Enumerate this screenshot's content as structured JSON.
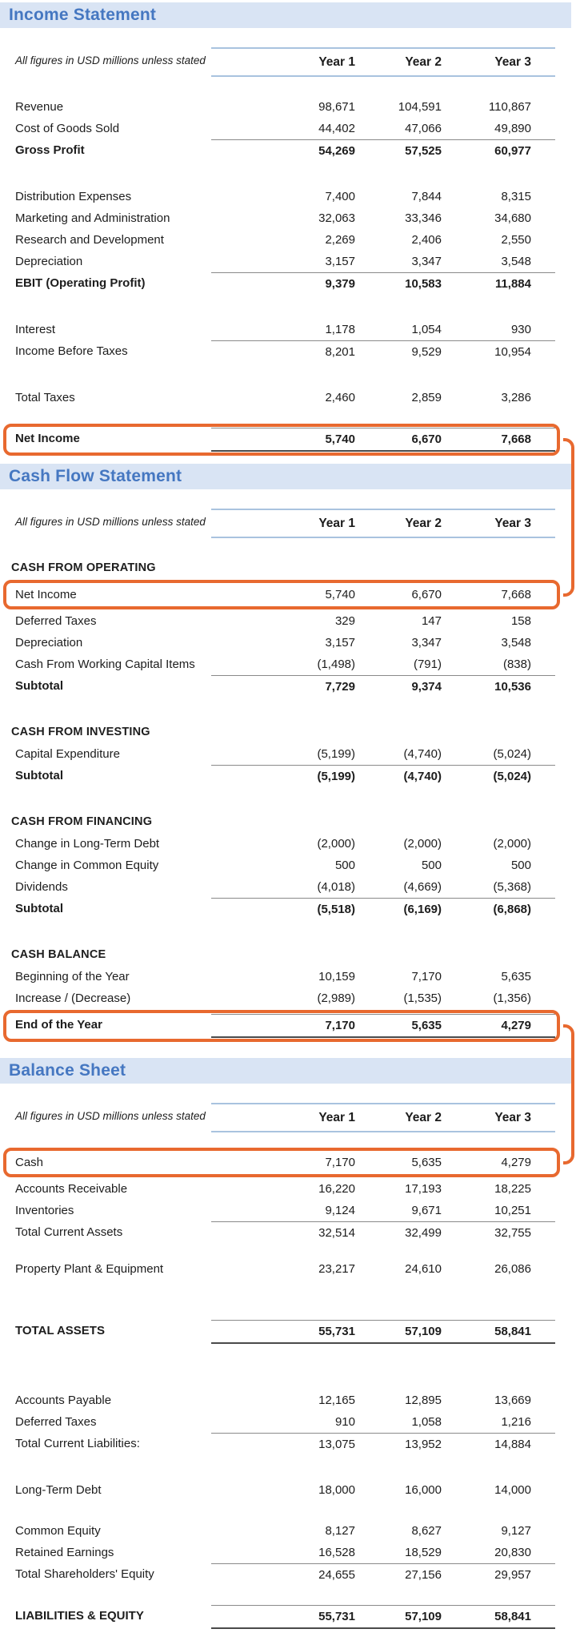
{
  "colors": {
    "section_title_blue": "#4577c1",
    "section_bar_bg": "#d9e4f4",
    "header_rule_blue": "#a9c3df",
    "highlight_orange": "#e8692f",
    "thin_rule_gray": "#8a8a8a",
    "total_rule_dark": "#4a4a4a"
  },
  "connectors": [
    {
      "from": "is-net-income",
      "to": "cf-net-income"
    },
    {
      "from": "cf-end-of-year",
      "to": "bs-cash"
    }
  ],
  "sections": [
    {
      "id": "income-statement",
      "title": "Income Statement",
      "note": "All figures in USD millions unless stated",
      "columns": [
        "Year 1",
        "Year 2",
        "Year 3"
      ],
      "groups": [
        {
          "rows": [
            {
              "label": "Revenue",
              "values": [
                "98,671",
                "104,591",
                "110,867"
              ]
            },
            {
              "label": "Cost of Goods Sold",
              "values": [
                "44,402",
                "47,066",
                "49,890"
              ]
            },
            {
              "label": "Gross Profit",
              "values": [
                "54,269",
                "57,525",
                "60,977"
              ],
              "bold": true,
              "rule_top": true
            }
          ]
        },
        {
          "rows": [
            {
              "label": "Distribution Expenses",
              "values": [
                "7,400",
                "7,844",
                "8,315"
              ]
            },
            {
              "label": "Marketing and Administration",
              "values": [
                "32,063",
                "33,346",
                "34,680"
              ]
            },
            {
              "label": "Research and Development",
              "values": [
                "2,269",
                "2,406",
                "2,550"
              ]
            },
            {
              "label": "Depreciation",
              "values": [
                "3,157",
                "3,347",
                "3,548"
              ]
            },
            {
              "label": "EBIT (Operating Profit)",
              "values": [
                "9,379",
                "10,583",
                "11,884"
              ],
              "bold": true,
              "rule_top": true
            }
          ]
        },
        {
          "rows": [
            {
              "label": "Interest",
              "values": [
                "1,178",
                "1,054",
                "930"
              ]
            },
            {
              "label": "Income Before Taxes",
              "values": [
                "8,201",
                "9,529",
                "10,954"
              ],
              "rule_top": true
            }
          ]
        },
        {
          "rows": [
            {
              "label": "Total Taxes",
              "values": [
                "2,460",
                "2,859",
                "3,286"
              ]
            }
          ]
        },
        {
          "gap": "sm",
          "rows": [
            {
              "label": "Net Income",
              "values": [
                "5,740",
                "6,670",
                "7,668"
              ],
              "bold": true,
              "rule_top": true,
              "rule_bottom": "dark",
              "highlight": "is-net-income"
            }
          ]
        }
      ]
    },
    {
      "id": "cash-flow-statement",
      "title": "Cash Flow Statement",
      "note": "All figures in USD millions unless stated",
      "columns": [
        "Year 1",
        "Year 2",
        "Year 3"
      ],
      "groups": [
        {
          "rows": [
            {
              "label": "CASH FROM OPERATING",
              "subhead": true
            },
            {
              "label": "Net Income",
              "values": [
                "5,740",
                "6,670",
                "7,668"
              ],
              "highlight": "cf-net-income"
            },
            {
              "label": "Deferred Taxes",
              "values": [
                "329",
                "147",
                "158"
              ]
            },
            {
              "label": "Depreciation",
              "values": [
                "3,157",
                "3,347",
                "3,548"
              ]
            },
            {
              "label": "Cash From Working Capital Items",
              "values": [
                "(1,498)",
                "(791)",
                "(838)"
              ]
            },
            {
              "label": "Subtotal",
              "values": [
                "7,729",
                "9,374",
                "10,536"
              ],
              "bold": true,
              "rule_top": true
            }
          ]
        },
        {
          "rows": [
            {
              "label": "CASH FROM INVESTING",
              "subhead": true
            },
            {
              "label": "Capital Expenditure",
              "values": [
                "(5,199)",
                "(4,740)",
                "(5,024)"
              ]
            },
            {
              "label": "Subtotal",
              "values": [
                "(5,199)",
                "(4,740)",
                "(5,024)"
              ],
              "bold": true,
              "rule_top": true
            }
          ]
        },
        {
          "rows": [
            {
              "label": "CASH FROM FINANCING",
              "subhead": true
            },
            {
              "label": "Change in Long-Term Debt",
              "values": [
                "(2,000)",
                "(2,000)",
                "(2,000)"
              ]
            },
            {
              "label": "Change in Common Equity",
              "values": [
                "500",
                "500",
                "500"
              ]
            },
            {
              "label": "Dividends",
              "values": [
                "(4,018)",
                "(4,669)",
                "(5,368)"
              ]
            },
            {
              "label": "Subtotal",
              "values": [
                "(5,518)",
                "(6,169)",
                "(6,868)"
              ],
              "bold": true,
              "rule_top": true
            }
          ]
        },
        {
          "rows": [
            {
              "label": "CASH BALANCE",
              "subhead": true
            },
            {
              "label": "Beginning of the Year",
              "values": [
                "10,159",
                "7,170",
                "5,635"
              ]
            },
            {
              "label": "Increase / (Decrease)",
              "values": [
                "(2,989)",
                "(1,535)",
                "(1,356)"
              ]
            },
            {
              "label": "End of the Year",
              "values": [
                "7,170",
                "5,635",
                "4,279"
              ],
              "bold": true,
              "rule_top": true,
              "rule_bottom": "dark",
              "highlight": "cf-end-of-year"
            }
          ]
        }
      ]
    },
    {
      "id": "balance-sheet",
      "title": "Balance Sheet",
      "note": "All figures in USD millions unless stated",
      "columns": [
        "Year 1",
        "Year 2",
        "Year 3"
      ],
      "groups": [
        {
          "rows": [
            {
              "label": "Cash",
              "values": [
                "7,170",
                "5,635",
                "4,279"
              ],
              "highlight": "bs-cash"
            },
            {
              "label": "Accounts Receivable",
              "values": [
                "16,220",
                "17,193",
                "18,225"
              ]
            },
            {
              "label": "Inventories",
              "values": [
                "9,124",
                "9,671",
                "10,251"
              ]
            },
            {
              "label": "Total Current Assets",
              "values": [
                "32,514",
                "32,499",
                "32,755"
              ],
              "rule_top": true
            }
          ]
        },
        {
          "gap": "xs",
          "rows": [
            {
              "label": "Property Plant & Equipment",
              "values": [
                "23,217",
                "24,610",
                "26,086"
              ]
            }
          ]
        },
        {
          "gap": "lg",
          "rows": [
            {
              "label": "TOTAL ASSETS",
              "values": [
                "55,731",
                "57,109",
                "58,841"
              ],
              "bold": true,
              "rule_top": true,
              "rule_bottom": "dark"
            }
          ]
        },
        {
          "gap": "xl",
          "rows": [
            {
              "label": "Accounts Payable",
              "values": [
                "12,165",
                "12,895",
                "13,669"
              ]
            },
            {
              "label": "Deferred Taxes",
              "values": [
                "910",
                "1,058",
                "1,216"
              ]
            },
            {
              "label": "Total Current Liabilities:",
              "values": [
                "13,075",
                "13,952",
                "14,884"
              ],
              "rule_top": true
            }
          ]
        },
        {
          "gap": "md",
          "rows": [
            {
              "label": "Long-Term Debt",
              "values": [
                "18,000",
                "16,000",
                "14,000"
              ]
            }
          ]
        },
        {
          "gap": "sm",
          "rows": [
            {
              "label": "Common Equity",
              "values": [
                "8,127",
                "8,627",
                "9,127"
              ]
            },
            {
              "label": "Retained Earnings",
              "values": [
                "16,528",
                "18,529",
                "20,830"
              ]
            },
            {
              "label": "Total Shareholders' Equity",
              "values": [
                "24,655",
                "27,156",
                "29,957"
              ],
              "rule_top": true
            }
          ]
        },
        {
          "gap": "sm",
          "rows": [
            {
              "label": "LIABILITIES & EQUITY",
              "values": [
                "55,731",
                "57,109",
                "58,841"
              ],
              "bold": true,
              "rule_top": true,
              "rule_bottom": "dark"
            }
          ]
        }
      ]
    }
  ]
}
